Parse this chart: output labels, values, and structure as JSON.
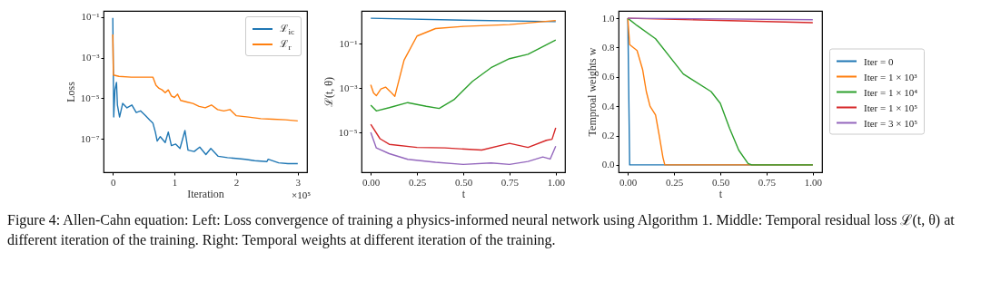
{
  "chart_data": [
    {
      "type": "line",
      "xlabel": "Iteration",
      "ylabel": "Loss",
      "log": "y",
      "xlim": [
        -0.15,
        3.15
      ],
      "xticks": [
        0,
        1,
        2,
        3
      ],
      "ylim": [
        2.3e-09,
        0.2
      ],
      "yticks": [
        {
          "value": 0.1,
          "label": "10⁻¹"
        },
        {
          "value": 0.001,
          "label": "10⁻³"
        },
        {
          "value": 1e-05,
          "label": "10⁻⁵"
        },
        {
          "value": 1e-07,
          "label": "10⁻⁷"
        }
      ],
      "legend": "top right",
      "grid": false,
      "annotations": [
        "×10⁵",
        "Figure 4: Allen-Cahn equation: Left: Loss convergence of training a physics-informed neural network using Algorithm 1. Middle: Temporal residual loss ℒ(t, θ) at different iteration of the training. Right: Temporal weights at different iteration of the training."
      ],
      "series": [
        {
          "name": "ℒ$_{ic}$",
          "color": "#1f77b4",
          "x": [
            0,
            0.015,
            0.035,
            0.06,
            0.075,
            0.11,
            0.16,
            0.23,
            0.31,
            0.38,
            0.45,
            0.53,
            0.6,
            0.65,
            0.69,
            0.72,
            0.77,
            0.85,
            0.9,
            0.95,
            1.02,
            1.09,
            1.17,
            1.22,
            1.32,
            1.41,
            1.51,
            1.59,
            1.71,
            1.86,
            2.0,
            2.15,
            2.3,
            2.5,
            2.52,
            2.69,
            2.84,
            3.0
          ],
          "values": [
            0.09,
            1.2e-06,
            2.6e-05,
            6e-05,
            4.7e-06,
            1.2e-06,
            5.6e-06,
            3.4e-06,
            4.7e-06,
            2e-06,
            2.4e-06,
            1.4e-06,
            8.5e-07,
            6.1e-07,
            2.2e-07,
            7.9e-08,
            1.3e-07,
            6.6e-08,
            2.2e-07,
            4.7e-08,
            5.6e-08,
            3.4e-08,
            2.6e-07,
            2.8e-08,
            2.4e-08,
            4e-08,
            1.7e-08,
            3.4e-08,
            1.4e-08,
            1.2e-08,
            1.1e-08,
            1e-08,
            8.5e-09,
            7.7e-09,
            1e-08,
            6.7e-09,
            6.1e-09,
            6.1e-09
          ]
        },
        {
          "name": "ℒ$_{r}$",
          "color": "#ff7f0e",
          "x": [
            0,
            0.01,
            0.1,
            0.3,
            0.65,
            0.7,
            0.75,
            0.8,
            0.85,
            0.9,
            0.95,
            1.0,
            1.05,
            1.1,
            1.2,
            1.3,
            1.4,
            1.5,
            1.6,
            1.7,
            1.8,
            1.9,
            2.0,
            2.2,
            2.4,
            2.6,
            2.8,
            3.0
          ],
          "values": [
            0.014,
            0.00014,
            0.00012,
            0.00011,
            0.00011,
            4.4e-05,
            3.1e-05,
            2.6e-05,
            1.9e-05,
            2.6e-05,
            1.3e-05,
            1.1e-05,
            1.6e-05,
            7.9e-06,
            6.6e-06,
            5.6e-06,
            4e-06,
            3.4e-06,
            4.7e-06,
            2.8e-06,
            2.4e-06,
            2.8e-06,
            1.4e-06,
            1.2e-06,
            1e-06,
            9.4e-07,
            8.8e-07,
            7.7e-07
          ]
        }
      ]
    },
    {
      "type": "line",
      "xlabel": "t",
      "ylabel": "ℒ(t, θ)",
      "log": "y",
      "xlim": [
        -0.05,
        1.05
      ],
      "xticks": [
        {
          "value": 0,
          "label": "0.00"
        },
        {
          "value": 0.25,
          "label": "0.25"
        },
        {
          "value": 0.5,
          "label": "0.50"
        },
        {
          "value": 0.75,
          "label": "0.75"
        },
        {
          "value": 1,
          "label": "1.00"
        }
      ],
      "ylim": [
        1.6e-07,
        3
      ],
      "yticks": [
        {
          "value": 0.1,
          "label": "10⁻¹"
        },
        {
          "value": 0.001,
          "label": "10⁻³"
        },
        {
          "value": 1e-05,
          "label": "10⁻⁵"
        }
      ],
      "grid": false,
      "series": [
        {
          "color": "#1f77b4",
          "x": [
            0,
            0.5,
            1
          ],
          "values": [
            1.4,
            1.15,
            0.98
          ]
        },
        {
          "color": "#ff7f0e",
          "x": [
            0,
            0.015,
            0.03,
            0.055,
            0.08,
            0.105,
            0.13,
            0.18,
            0.25,
            0.35,
            0.5,
            0.75,
            1
          ],
          "values": [
            0.0014,
            0.0006,
            0.00045,
            0.0009,
            0.0011,
            0.0007,
            0.00042,
            0.018,
            0.22,
            0.48,
            0.6,
            0.72,
            1.1
          ]
        },
        {
          "color": "#2ca02c",
          "x": [
            0,
            0.03,
            0.1,
            0.2,
            0.3,
            0.37,
            0.45,
            0.55,
            0.65,
            0.75,
            0.85,
            1
          ],
          "values": [
            0.00017,
            9.3e-05,
            0.00013,
            0.00022,
            0.00015,
            0.00012,
            0.0003,
            0.002,
            0.0082,
            0.021,
            0.033,
            0.146
          ]
        },
        {
          "color": "#d62728",
          "x": [
            0,
            0.05,
            0.1,
            0.25,
            0.4,
            0.6,
            0.75,
            0.85,
            0.95,
            0.98,
            1
          ],
          "values": [
            2.3e-05,
            5.2e-06,
            2.9e-06,
            2.1e-06,
            2e-06,
            1.6e-06,
            3.2e-06,
            2.1e-06,
            4.4e-06,
            4.9e-06,
            1.6e-05
          ]
        },
        {
          "color": "#9467bd",
          "x": [
            0,
            0.03,
            0.1,
            0.2,
            0.35,
            0.5,
            0.65,
            0.75,
            0.85,
            0.93,
            0.97,
            1
          ],
          "values": [
            1e-05,
            2e-06,
            1.1e-06,
            6.1e-07,
            4.5e-07,
            3.6e-07,
            4.2e-07,
            3.6e-07,
            4.9e-07,
            7.8e-07,
            6.3e-07,
            2.4e-06
          ]
        }
      ]
    },
    {
      "type": "line",
      "xlabel": "t",
      "ylabel": "Temproal weights w",
      "xlim": [
        -0.05,
        1.05
      ],
      "xticks": [
        {
          "value": 0,
          "label": "0.00"
        },
        {
          "value": 0.25,
          "label": "0.25"
        },
        {
          "value": 0.5,
          "label": "0.50"
        },
        {
          "value": 0.75,
          "label": "0.75"
        },
        {
          "value": 1,
          "label": "1.00"
        }
      ],
      "ylim": [
        -0.05,
        1.05
      ],
      "yticks": [
        {
          "value": 0,
          "label": "0.0"
        },
        0.2,
        0.4,
        0.6,
        0.8,
        {
          "value": 1,
          "label": "1.0"
        }
      ],
      "legend": "right",
      "grid": false,
      "series": [
        {
          "name": "Iter = 0",
          "color": "#1f77b4",
          "x": [
            0,
            0.01,
            1
          ],
          "values": [
            1,
            0,
            0
          ]
        },
        {
          "name": "Iter = 1 × 10³",
          "color": "#ff7f0e",
          "x": [
            0,
            0.01,
            0.05,
            0.08,
            0.1,
            0.12,
            0.15,
            0.17,
            0.19,
            0.2,
            1
          ],
          "values": [
            1,
            0.82,
            0.78,
            0.65,
            0.5,
            0.4,
            0.34,
            0.2,
            0.05,
            0,
            0
          ]
        },
        {
          "name": "Iter = 1 × 10⁴",
          "color": "#2ca02c",
          "x": [
            0,
            0.05,
            0.15,
            0.25,
            0.3,
            0.35,
            0.45,
            0.5,
            0.55,
            0.6,
            0.65,
            0.67,
            1
          ],
          "values": [
            1,
            0.95,
            0.86,
            0.7,
            0.62,
            0.58,
            0.5,
            0.42,
            0.25,
            0.1,
            0.01,
            0,
            0
          ]
        },
        {
          "name": "Iter = 1 × 10⁵",
          "color": "#d62728",
          "x": [
            0,
            1
          ],
          "values": [
            1,
            0.97
          ]
        },
        {
          "name": "Iter = 3 × 10⁵",
          "color": "#9467bd",
          "x": [
            0,
            1
          ],
          "values": [
            1,
            0.99
          ]
        }
      ]
    }
  ]
}
